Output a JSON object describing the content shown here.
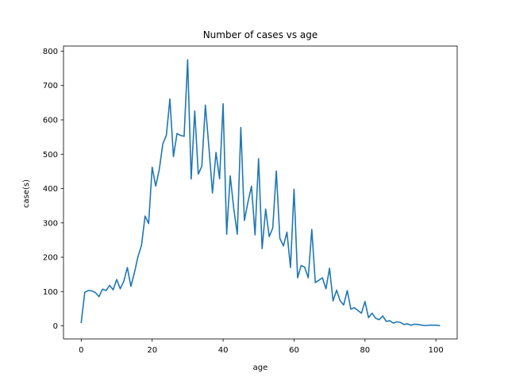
{
  "chart_data": {
    "type": "line",
    "title": "Number of cases vs age",
    "xlabel": "age",
    "ylabel": "case(s)",
    "xlim": [
      -5,
      106
    ],
    "ylim": [
      -38,
      815
    ],
    "xticks": [
      0,
      20,
      40,
      60,
      80,
      100
    ],
    "yticks": [
      0,
      100,
      200,
      300,
      400,
      500,
      600,
      700,
      800
    ],
    "grid": false,
    "legend": "none",
    "series": [
      {
        "color": "#1f77b4",
        "x": [
          0,
          1,
          2,
          3,
          4,
          5,
          6,
          7,
          8,
          9,
          10,
          11,
          12,
          13,
          14,
          15,
          16,
          17,
          18,
          19,
          20,
          21,
          22,
          23,
          24,
          25,
          26,
          27,
          28,
          29,
          30,
          31,
          32,
          33,
          34,
          35,
          36,
          37,
          38,
          39,
          40,
          41,
          42,
          43,
          44,
          45,
          46,
          47,
          48,
          49,
          50,
          51,
          52,
          53,
          54,
          55,
          56,
          57,
          58,
          59,
          60,
          61,
          62,
          63,
          64,
          65,
          66,
          67,
          68,
          69,
          70,
          71,
          72,
          73,
          74,
          75,
          76,
          77,
          78,
          79,
          80,
          81,
          82,
          83,
          84,
          85,
          86,
          87,
          88,
          89,
          90,
          91,
          92,
          93,
          94,
          95,
          96,
          97,
          98,
          99,
          100,
          101
        ],
        "values": [
          10,
          98,
          103,
          102,
          97,
          85,
          107,
          103,
          118,
          105,
          135,
          108,
          130,
          170,
          115,
          155,
          202,
          235,
          320,
          298,
          462,
          407,
          455,
          530,
          555,
          661,
          493,
          560,
          555,
          552,
          775,
          428,
          626,
          442,
          465,
          643,
          520,
          387,
          505,
          428,
          647,
          267,
          437,
          342,
          267,
          578,
          307,
          360,
          407,
          265,
          487,
          225,
          340,
          260,
          285,
          451,
          255,
          233,
          273,
          170,
          398,
          140,
          176,
          171,
          140,
          281,
          126,
          133,
          140,
          108,
          168,
          73,
          104,
          73,
          61,
          103,
          49,
          53,
          45,
          37,
          71,
          24,
          37,
          22,
          18,
          29,
          13,
          15,
          8,
          12,
          10,
          4,
          6,
          2,
          5,
          4,
          2,
          1,
          2,
          2,
          2,
          1
        ]
      }
    ]
  }
}
